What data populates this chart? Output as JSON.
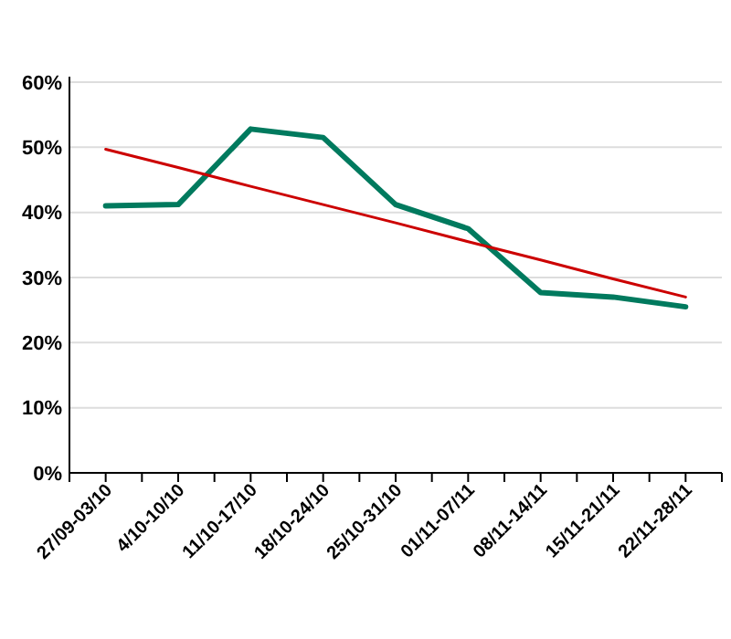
{
  "chart_data": {
    "type": "line",
    "categories": [
      "27/09-03/10",
      "4/10-10/10",
      "11/10-17/10",
      "18/10-24/10",
      "25/10-31/10",
      "01/11-07/11",
      "08/11-14/11",
      "15/11-21/11",
      "22/11-28/11"
    ],
    "series": [
      {
        "color": "#007a5e",
        "values": [
          41,
          41.2,
          52.8,
          51.5,
          41.2,
          37.5,
          27.7,
          27,
          25.5
        ]
      },
      {
        "color": "#cc0000",
        "values": [
          49.7,
          46.9,
          44.0,
          41.2,
          38.4,
          35.5,
          32.7,
          29.8,
          27.0
        ]
      }
    ],
    "ylim": [
      0,
      60
    ],
    "yticks": [
      {
        "value": 0,
        "label": "0%"
      },
      {
        "value": 10,
        "label": "10%"
      },
      {
        "value": 20,
        "label": "20%"
      },
      {
        "value": 30,
        "label": "30%"
      },
      {
        "value": 40,
        "label": "40%"
      },
      {
        "value": 50,
        "label": "50%"
      },
      {
        "value": 60,
        "label": "60%"
      }
    ],
    "grid": "y",
    "marker": "none",
    "line_style": "solid"
  }
}
